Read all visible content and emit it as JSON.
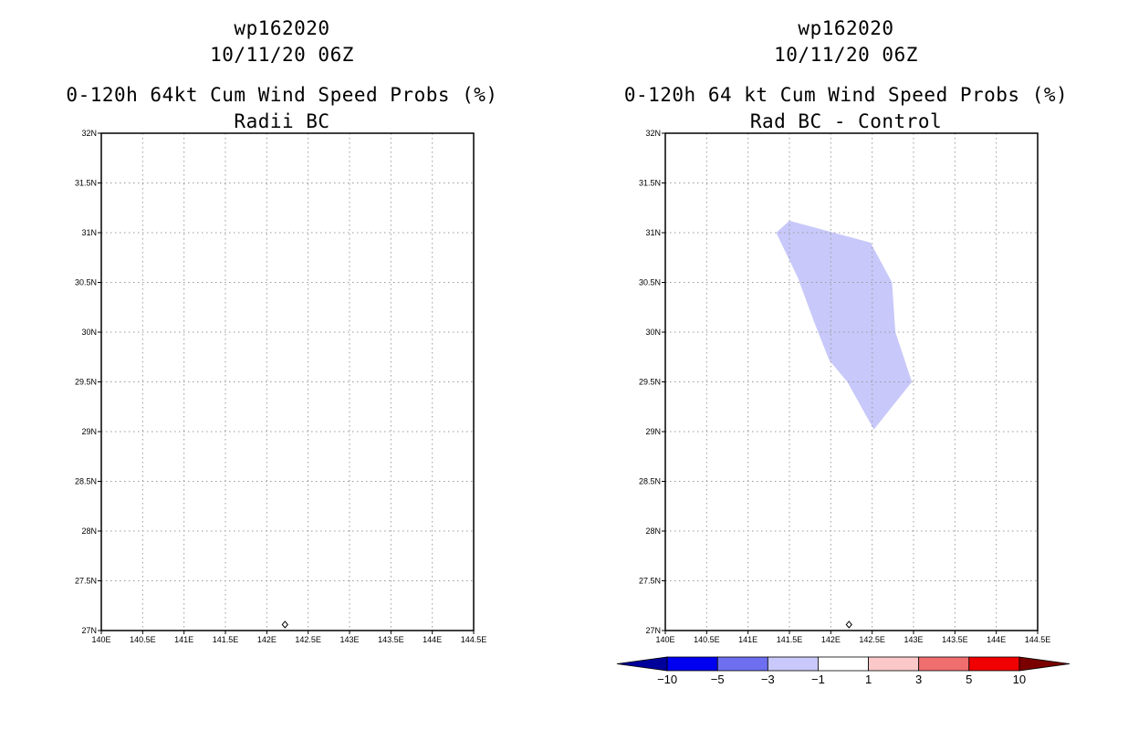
{
  "panels": [
    {
      "title_line1": "wp162020",
      "title_line2": "10/11/20 06Z",
      "title_line3": "0-120h 64kt Cum Wind Speed Probs (%)",
      "title_line4": "Radii BC"
    },
    {
      "title_line1": "wp162020",
      "title_line2": "10/11/20 06Z",
      "title_line3": "0-120h 64 kt Cum Wind Speed Probs (%)",
      "title_line4": "Rad BC - Control"
    }
  ],
  "map": {
    "lon_range": [
      140,
      144.5
    ],
    "lat_range": [
      27,
      32
    ],
    "lon_ticks": [
      "140E",
      "140.5E",
      "141E",
      "141.5E",
      "142E",
      "142.5E",
      "143E",
      "143.5E",
      "144E",
      "144.5E"
    ],
    "lat_ticks": [
      "27N",
      "27.5N",
      "28N",
      "28.5N",
      "29N",
      "29.5N",
      "30N",
      "30.5N",
      "31N",
      "31.5N",
      "32N"
    ],
    "storm_marker": {
      "lon": 142.22,
      "lat": 27.06,
      "symbol": "diamond"
    },
    "gridlines": true
  },
  "chart_data": {
    "type": "contour-map",
    "title": "0-120h 64 kt Cum Wind Speed Probs (%) - Rad BC - Control",
    "contour_regions": [
      {
        "level_range": [
          -3,
          -1
        ],
        "color": "#c8c8fa",
        "polygon_lonlat": [
          [
            141.5,
            31.12
          ],
          [
            142.48,
            30.9
          ],
          [
            142.74,
            30.5
          ],
          [
            142.78,
            30.0
          ],
          [
            142.98,
            29.5
          ],
          [
            142.52,
            29.02
          ],
          [
            142.2,
            29.5
          ],
          [
            141.98,
            29.72
          ],
          [
            141.8,
            30.1
          ],
          [
            141.6,
            30.55
          ],
          [
            141.34,
            31.0
          ]
        ]
      }
    ],
    "colorbar": {
      "labels": [
        "-10",
        "-5",
        "-3",
        "-1",
        "1",
        "3",
        "5",
        "10"
      ],
      "colors": [
        "#00009a",
        "#0000f0",
        "#6e6ef0",
        "#c8c8fa",
        "#ffffff",
        "#fac8c8",
        "#f06e6e",
        "#f00000",
        "#7a0000"
      ]
    }
  }
}
